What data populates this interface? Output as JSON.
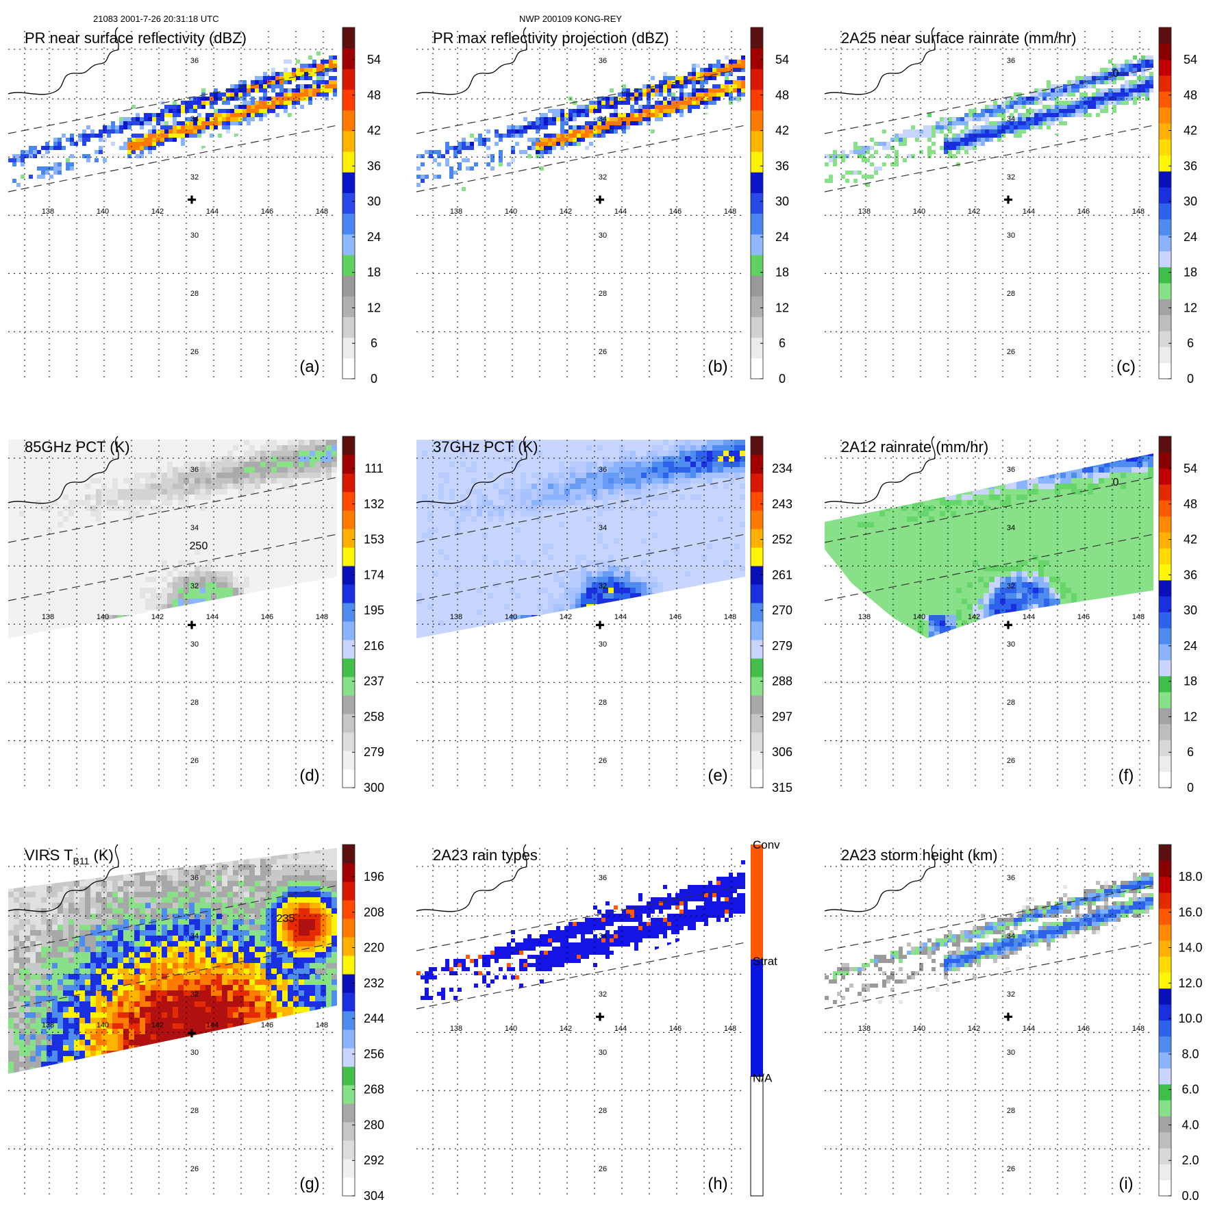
{
  "header": {
    "left_text": "21083 2001-7-26 20:31:18 UTC",
    "center_text": "NWP 200109 KONG-REY"
  },
  "chart_data": [
    {
      "type": "heatmap",
      "panel": "(a)",
      "title": "PR near surface reflectivity (dBZ)",
      "colorbar_ticks": [
        "54",
        "48",
        "42",
        "36",
        "30",
        "24",
        "18",
        "12",
        "6",
        "0"
      ],
      "colorbar_range": [
        0,
        60
      ],
      "lon_ticks": [
        "138",
        "140",
        "142",
        "144",
        "146",
        "148"
      ],
      "lat_ticks": [
        "36",
        "34",
        "32",
        "30",
        "28",
        "26"
      ],
      "swath": "PR",
      "field": "refl"
    },
    {
      "type": "heatmap",
      "panel": "(b)",
      "title": "PR max reflectivity projection (dBZ)",
      "colorbar_ticks": [
        "54",
        "48",
        "42",
        "36",
        "30",
        "24",
        "18",
        "12",
        "6",
        "0"
      ],
      "colorbar_range": [
        0,
        60
      ],
      "lon_ticks": [
        "138",
        "140",
        "142",
        "144",
        "146",
        "148"
      ],
      "lat_ticks": [
        "36",
        "34",
        "32",
        "30",
        "28",
        "26"
      ],
      "swath": "PR",
      "field": "refl_max"
    },
    {
      "type": "heatmap",
      "panel": "(c)",
      "title": "2A25 near surface rainrate (mm/hr)",
      "colorbar_ticks": [
        "54",
        "48",
        "42",
        "36",
        "30",
        "24",
        "18",
        "12",
        "6",
        "0"
      ],
      "colorbar_range": [
        0,
        60
      ],
      "lon_ticks": [
        "138",
        "140",
        "142",
        "144",
        "146",
        "148"
      ],
      "lat_ticks": [
        "36",
        "34",
        "32",
        "30",
        "28",
        "26"
      ],
      "swath": "PR",
      "field": "rain",
      "contour_label": "0"
    },
    {
      "type": "heatmap",
      "panel": "(d)",
      "title": "85GHz PCT (K)",
      "colorbar_ticks": [
        "111",
        "132",
        "153",
        "174",
        "195",
        "216",
        "237",
        "258",
        "279",
        "300"
      ],
      "colorbar_range": [
        300,
        90
      ],
      "lon_ticks": [
        "138",
        "140",
        "142",
        "144",
        "146",
        "148"
      ],
      "lat_ticks": [
        "36",
        "34",
        "32",
        "30",
        "28",
        "26"
      ],
      "swath": "TMI",
      "field": "pct85",
      "contour_label": "250"
    },
    {
      "type": "heatmap",
      "panel": "(e)",
      "title": "37GHz PCT (K)",
      "colorbar_ticks": [
        "234",
        "243",
        "252",
        "261",
        "270",
        "279",
        "288",
        "297",
        "306",
        "315"
      ],
      "colorbar_range": [
        315,
        225
      ],
      "lon_ticks": [
        "138",
        "140",
        "142",
        "144",
        "146",
        "148"
      ],
      "lat_ticks": [
        "36",
        "34",
        "32",
        "30",
        "28",
        "26"
      ],
      "swath": "TMI",
      "field": "pct37"
    },
    {
      "type": "heatmap",
      "panel": "(f)",
      "title": "2A12 rainrate (mm/hr)",
      "colorbar_ticks": [
        "54",
        "48",
        "42",
        "36",
        "30",
        "24",
        "18",
        "12",
        "6",
        "0"
      ],
      "colorbar_range": [
        0,
        60
      ],
      "lon_ticks": [
        "138",
        "140",
        "142",
        "144",
        "146",
        "148"
      ],
      "lat_ticks": [
        "36",
        "34",
        "32",
        "30",
        "28",
        "26"
      ],
      "swath": "TMI",
      "field": "rain12",
      "contour_label": "0"
    },
    {
      "type": "heatmap",
      "panel": "(g)",
      "title": "VIRS T",
      "title_sub": "B11",
      "title_units": " (K)",
      "colorbar_ticks": [
        "196",
        "208",
        "220",
        "232",
        "244",
        "256",
        "268",
        "280",
        "292",
        "304"
      ],
      "colorbar_range": [
        304,
        184
      ],
      "lon_ticks": [
        "138",
        "140",
        "142",
        "144",
        "146",
        "148"
      ],
      "lat_ticks": [
        "36",
        "34",
        "32",
        "30",
        "28",
        "26"
      ],
      "swath": "VIRS",
      "field": "virs",
      "contour_label": "235"
    },
    {
      "type": "heatmap",
      "panel": "(h)",
      "title": "2A23 rain types",
      "colorbar_categories": [
        "Conv",
        "Strat",
        "N/A"
      ],
      "lon_ticks": [
        "138",
        "140",
        "142",
        "144",
        "146",
        "148"
      ],
      "lat_ticks": [
        "36",
        "34",
        "32",
        "30",
        "28",
        "26"
      ],
      "swath": "PR",
      "field": "raintype"
    },
    {
      "type": "heatmap",
      "panel": "(i)",
      "title": "2A23 storm height (km)",
      "colorbar_ticks": [
        "18.0",
        "16.0",
        "14.0",
        "12.0",
        "10.0",
        "8.0",
        "6.0",
        "4.0",
        "2.0",
        "0.0"
      ],
      "colorbar_range": [
        0,
        20
      ],
      "lon_ticks": [
        "138",
        "140",
        "142",
        "144",
        "146",
        "148"
      ],
      "lat_ticks": [
        "36",
        "34",
        "32",
        "30",
        "28",
        "26"
      ],
      "swath": "PR",
      "field": "height"
    }
  ]
}
